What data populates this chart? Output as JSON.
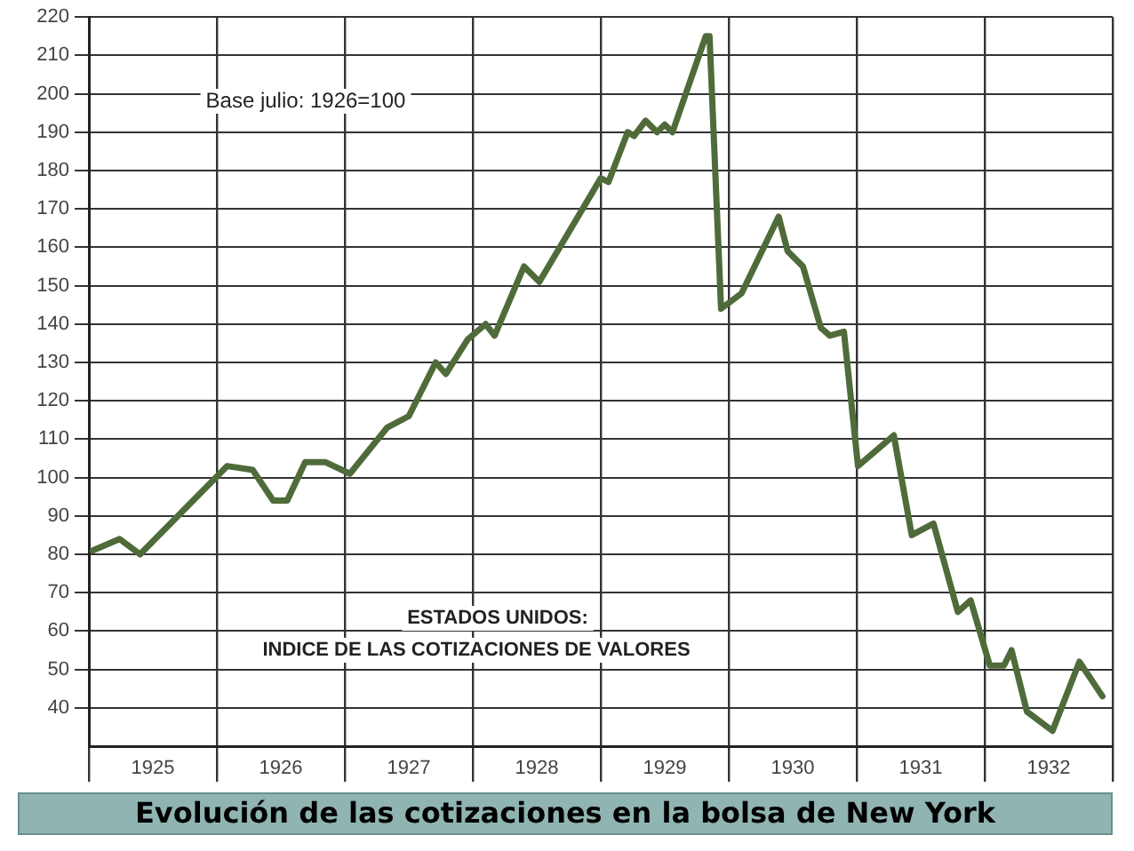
{
  "chart_data": {
    "type": "line",
    "title": "Evolución de las cotizaciones en la bolsa de New York",
    "annotations": [
      "Base julio: 1926=100",
      "ESTADOS UNIDOS:",
      "INDICE DE LAS COTIZACIONES DE VALORES"
    ],
    "xlim": [
      1925,
      1933
    ],
    "xticks": [
      {
        "value": 1925,
        "label": null
      },
      {
        "value": 1925.5,
        "label": "1925"
      },
      {
        "value": 1926,
        "label": null
      },
      {
        "value": 1926.5,
        "label": "1926"
      },
      {
        "value": 1927,
        "label": null
      },
      {
        "value": 1927.5,
        "label": "1927"
      },
      {
        "value": 1928,
        "label": null
      },
      {
        "value": 1928.5,
        "label": "1928"
      },
      {
        "value": 1929,
        "label": null
      },
      {
        "value": 1929.5,
        "label": "1929"
      },
      {
        "value": 1930,
        "label": null
      },
      {
        "value": 1930.5,
        "label": "1930"
      },
      {
        "value": 1931,
        "label": null
      },
      {
        "value": 1931.5,
        "label": "1931"
      },
      {
        "value": 1932,
        "label": null
      },
      {
        "value": 1932.5,
        "label": "1932"
      },
      {
        "value": 1933,
        "label": null
      }
    ],
    "ylim": [
      30,
      220
    ],
    "yticks": [
      40,
      50,
      60,
      70,
      80,
      90,
      100,
      110,
      120,
      130,
      140,
      150,
      160,
      170,
      180,
      190,
      200,
      210,
      220
    ],
    "grid": true,
    "legend": false,
    "marker": "none",
    "line_style": "solid",
    "series": [
      {
        "color": "#4f6b3a",
        "x": [
          1925.03,
          1925.24,
          1925.4,
          1926.08,
          1926.28,
          1926.44,
          1926.55,
          1926.69,
          1926.85,
          1927.04,
          1927.33,
          1927.5,
          1927.71,
          1927.79,
          1927.96,
          1928.1,
          1928.17,
          1928.4,
          1928.52,
          1929.0,
          1929.06,
          1929.21,
          1929.26,
          1929.35,
          1929.44,
          1929.5,
          1929.56,
          1929.82,
          1929.85,
          1929.94,
          1930.1,
          1930.39,
          1930.46,
          1930.58,
          1930.72,
          1930.79,
          1930.9,
          1931.01,
          1931.29,
          1931.43,
          1931.6,
          1931.79,
          1931.89,
          1932.04,
          1932.15,
          1932.21,
          1932.33,
          1932.53,
          1932.74,
          1932.92
        ],
        "values": [
          81,
          84,
          80,
          103,
          102,
          94,
          94,
          104,
          104,
          101,
          113,
          116,
          130,
          127,
          136,
          140,
          137,
          155,
          151,
          178,
          177,
          190,
          189,
          193,
          190,
          192,
          190,
          215,
          215,
          144,
          148,
          168,
          159,
          155,
          139,
          137,
          138,
          103,
          111,
          85,
          88,
          65,
          68,
          51,
          51,
          55,
          39,
          34,
          52,
          43
        ]
      }
    ]
  }
}
